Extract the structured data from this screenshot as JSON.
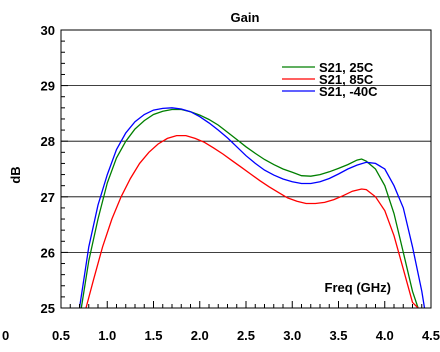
{
  "chart_data": {
    "type": "line",
    "title": "Gain",
    "xlabel": "",
    "ylabel": "dB",
    "annotation": "Freq (GHz)",
    "xlim": [
      0.5,
      4.5
    ],
    "ylim": [
      25,
      30
    ],
    "xticks": [
      "0.5",
      "1.0",
      "1.5",
      "2.0",
      "2.5",
      "3.0",
      "3.5",
      "4.0",
      "4.5"
    ],
    "xtick_values": [
      0.5,
      1.0,
      1.5,
      2.0,
      2.5,
      3.0,
      3.5,
      4.0,
      4.5
    ],
    "extra_left_label": "0",
    "yticks": [
      "25",
      "26",
      "27",
      "28",
      "29",
      "30"
    ],
    "ytick_values": [
      25,
      26,
      27,
      28,
      29,
      30
    ],
    "grid": "horizontal",
    "legend_position": "top-right",
    "series": [
      {
        "name": "S21, 25C",
        "color": "#007f00",
        "x": [
          0.72,
          0.8,
          0.9,
          1.0,
          1.1,
          1.2,
          1.3,
          1.4,
          1.5,
          1.6,
          1.7,
          1.8,
          1.9,
          2.0,
          2.1,
          2.2,
          2.3,
          2.4,
          2.5,
          2.6,
          2.7,
          2.8,
          2.9,
          3.0,
          3.1,
          3.2,
          3.3,
          3.4,
          3.5,
          3.6,
          3.7,
          3.75,
          3.8,
          3.9,
          4.0,
          4.1,
          4.2,
          4.3,
          4.36
        ],
        "y": [
          25.0,
          25.85,
          26.6,
          27.25,
          27.7,
          28.0,
          28.22,
          28.37,
          28.48,
          28.54,
          28.57,
          28.57,
          28.53,
          28.47,
          28.39,
          28.29,
          28.16,
          28.03,
          27.9,
          27.78,
          27.67,
          27.58,
          27.5,
          27.44,
          27.38,
          27.37,
          27.4,
          27.45,
          27.51,
          27.58,
          27.66,
          27.68,
          27.64,
          27.5,
          27.2,
          26.7,
          26.0,
          25.3,
          25.0
        ]
      },
      {
        "name": "S21, 85C",
        "color": "#ff0000",
        "x": [
          0.77,
          0.85,
          0.95,
          1.05,
          1.15,
          1.25,
          1.35,
          1.45,
          1.55,
          1.65,
          1.75,
          1.85,
          1.95,
          2.05,
          2.15,
          2.25,
          2.35,
          2.45,
          2.55,
          2.65,
          2.75,
          2.85,
          2.95,
          3.05,
          3.15,
          3.25,
          3.35,
          3.45,
          3.55,
          3.65,
          3.75,
          3.8,
          3.9,
          4.0,
          4.1,
          4.2,
          4.3,
          4.36
        ],
        "y": [
          25.0,
          25.5,
          26.1,
          26.6,
          27.0,
          27.33,
          27.6,
          27.8,
          27.95,
          28.05,
          28.1,
          28.1,
          28.05,
          27.98,
          27.88,
          27.77,
          27.65,
          27.53,
          27.41,
          27.29,
          27.18,
          27.08,
          26.98,
          26.92,
          26.88,
          26.88,
          26.9,
          26.95,
          27.02,
          27.1,
          27.14,
          27.13,
          27.0,
          26.75,
          26.3,
          25.7,
          25.1,
          25.0
        ]
      },
      {
        "name": "S21, -40C",
        "color": "#0000ff",
        "x": [
          0.7,
          0.8,
          0.9,
          1.0,
          1.1,
          1.2,
          1.3,
          1.4,
          1.5,
          1.6,
          1.7,
          1.8,
          1.9,
          2.0,
          2.1,
          2.2,
          2.3,
          2.4,
          2.5,
          2.6,
          2.7,
          2.8,
          2.9,
          3.0,
          3.1,
          3.2,
          3.3,
          3.4,
          3.5,
          3.6,
          3.7,
          3.8,
          3.9,
          4.0,
          4.1,
          4.2,
          4.3,
          4.4,
          4.43
        ],
        "y": [
          25.0,
          26.1,
          26.85,
          27.4,
          27.85,
          28.15,
          28.35,
          28.48,
          28.56,
          28.59,
          28.6,
          28.58,
          28.53,
          28.44,
          28.33,
          28.2,
          28.06,
          27.9,
          27.74,
          27.6,
          27.48,
          27.39,
          27.32,
          27.27,
          27.24,
          27.24,
          27.27,
          27.33,
          27.41,
          27.5,
          27.57,
          27.62,
          27.6,
          27.5,
          27.2,
          26.8,
          26.1,
          25.3,
          25.0
        ]
      }
    ]
  }
}
